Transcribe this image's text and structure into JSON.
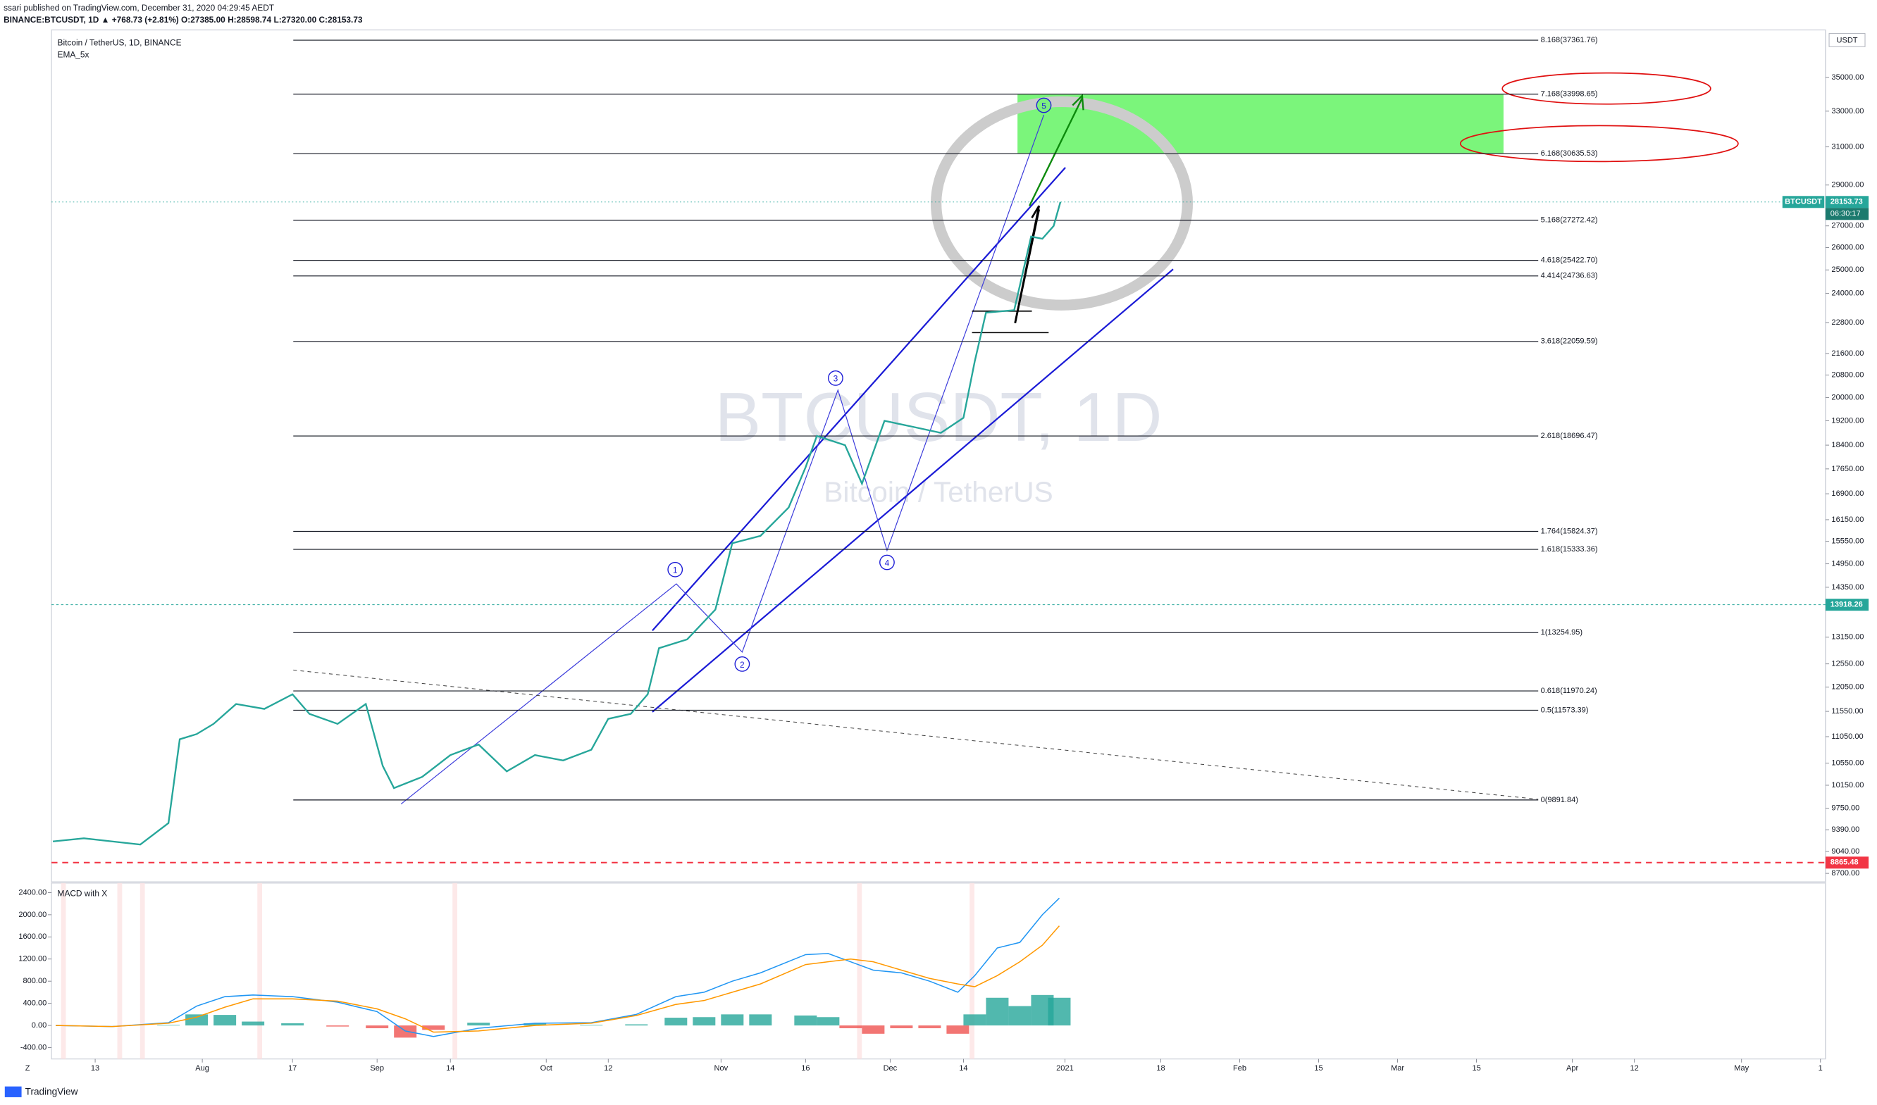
{
  "header": {
    "publisher": "ssari published on TradingView.com, December 31, 2020 04:29:45 AEDT",
    "symbol_line": "BINANCE:BTCUSDT, 1D ▲ +768.73 (+2.81%) O:27385.00 H:28598.74 L:27320.00 C:28153.73",
    "brand": "TradingView"
  },
  "chart_data": [
    {
      "type": "line",
      "title": "Bitcoin / TetherUS, 1D, BINANCE",
      "indicator": "EMA_5x",
      "watermark": "BTCUSDT, 1D",
      "watermark_subtitle": "Bitcoin / TetherUS",
      "unit": "USDT",
      "log_scale": true,
      "grid": false,
      "xlim": [
        4.25,
        318.9
      ],
      "xticks": [
        {
          "value": 12,
          "label": "13"
        },
        {
          "value": 31,
          "label": "Aug"
        },
        {
          "value": 47,
          "label": "17"
        },
        {
          "value": 62,
          "label": "Sep"
        },
        {
          "value": 75,
          "label": "14"
        },
        {
          "value": 92,
          "label": "Oct"
        },
        {
          "value": 103,
          "label": "12"
        },
        {
          "value": 123,
          "label": "Nov"
        },
        {
          "value": 138,
          "label": "16"
        },
        {
          "value": 153,
          "label": "Dec"
        },
        {
          "value": 166,
          "label": "14"
        },
        {
          "value": 184,
          "label": "2021"
        },
        {
          "value": 201,
          "label": "18"
        },
        {
          "value": 215,
          "label": "Feb"
        },
        {
          "value": 229,
          "label": "15"
        },
        {
          "value": 243,
          "label": "Mar"
        },
        {
          "value": 257,
          "label": "15"
        },
        {
          "value": 274,
          "label": "Apr"
        },
        {
          "value": 285,
          "label": "12"
        },
        {
          "value": 304,
          "label": "May"
        },
        {
          "value": 318,
          "label": "1"
        }
      ],
      "ylim": [
        8572,
        38040
      ],
      "yticks": [
        {
          "value": 35000,
          "label": "35000.00"
        },
        {
          "value": 33000,
          "label": "33000.00"
        },
        {
          "value": 31000,
          "label": "31000.00"
        },
        {
          "value": 29000,
          "label": "29000.00"
        },
        {
          "value": 27000,
          "label": "27000.00"
        },
        {
          "value": 26000,
          "label": "26000.00"
        },
        {
          "value": 25000,
          "label": "25000.00"
        },
        {
          "value": 24000,
          "label": "24000.00"
        },
        {
          "value": 22800,
          "label": "22800.00"
        },
        {
          "value": 21600,
          "label": "21600.00"
        },
        {
          "value": 20800,
          "label": "20800.00"
        },
        {
          "value": 20000,
          "label": "20000.00"
        },
        {
          "value": 19200,
          "label": "19200.00"
        },
        {
          "value": 18400,
          "label": "18400.00"
        },
        {
          "value": 17650,
          "label": "17650.00"
        },
        {
          "value": 16900,
          "label": "16900.00"
        },
        {
          "value": 16150,
          "label": "16150.00"
        },
        {
          "value": 15550,
          "label": "15550.00"
        },
        {
          "value": 14950,
          "label": "14950.00"
        },
        {
          "value": 14350,
          "label": "14350.00"
        },
        {
          "value": 13150,
          "label": "13150.00"
        },
        {
          "value": 12550,
          "label": "12550.00"
        },
        {
          "value": 12050,
          "label": "12050.00"
        },
        {
          "value": 11550,
          "label": "11550.00"
        },
        {
          "value": 11050,
          "label": "11050.00"
        },
        {
          "value": 10550,
          "label": "10550.00"
        },
        {
          "value": 10150,
          "label": "10150.00"
        },
        {
          "value": 9750,
          "label": "9750.00"
        },
        {
          "value": 9390,
          "label": "9390.00"
        },
        {
          "value": 9040,
          "label": "9040.00"
        },
        {
          "value": 8700,
          "label": "8700.00"
        }
      ],
      "x": [
        4.5,
        10,
        15,
        20,
        25,
        27,
        30,
        33,
        37,
        42,
        47,
        50,
        55,
        60,
        63,
        65,
        70,
        75,
        80,
        85,
        90,
        95,
        100,
        103,
        107,
        110,
        112,
        117,
        122,
        125,
        130,
        135,
        138,
        140,
        145,
        148,
        152,
        157,
        162,
        166,
        168,
        170,
        175,
        178,
        180,
        182,
        183.2
      ],
      "series": [
        {
          "name": "BTCUSDT",
          "color": "#26a69a",
          "values": [
            9200,
            9250,
            9200,
            9150,
            9500,
            11000,
            11100,
            11300,
            11700,
            11600,
            11900,
            11500,
            11300,
            11700,
            10500,
            10100,
            10300,
            10700,
            10900,
            10400,
            10700,
            10600,
            10800,
            11400,
            11500,
            11900,
            12900,
            13100,
            13800,
            15500,
            15700,
            16500,
            17700,
            18700,
            18400,
            17200,
            19200,
            19000,
            18800,
            19300,
            21300,
            23200,
            23300,
            26500,
            26400,
            27000,
            28153.73
          ]
        }
      ],
      "last_price": 28153.73,
      "countdown": "06:30:17",
      "levels": [
        {
          "value": 13918.26,
          "color": "#26a69a"
        },
        {
          "value": 8865.48,
          "color": "#f23645"
        }
      ],
      "fib_levels": [
        {
          "value": 37361.76,
          "label": "8.168(37361.76)"
        },
        {
          "value": 33998.65,
          "label": "7.168(33998.65)"
        },
        {
          "value": 30635.53,
          "label": "6.168(30635.53)"
        },
        {
          "value": 27272.42,
          "label": "5.168(27272.42)"
        },
        {
          "value": 25422.7,
          "label": "4.618(25422.70)"
        },
        {
          "value": 24736.63,
          "label": "4.414(24736.63)"
        },
        {
          "value": 22059.59,
          "label": "3.618(22059.59)"
        },
        {
          "value": 18696.47,
          "label": "2.618(18696.47)"
        },
        {
          "value": 15824.37,
          "label": "1.764(15824.37)"
        },
        {
          "value": 15333.36,
          "label": "1.618(15333.36)"
        },
        {
          "value": 13254.95,
          "label": "1(13254.95)"
        },
        {
          "value": 11970.24,
          "label": "0.618(11970.24)"
        },
        {
          "value": 11573.39,
          "label": "0.5(11573.39)"
        },
        {
          "value": 9891.84,
          "label": "0(9891.84)"
        }
      ],
      "wave_labels": [
        "1",
        "2",
        "3",
        "4",
        "5"
      ]
    },
    {
      "type": "line",
      "title": "MACD with X",
      "grid": false,
      "ylim": [
        -605,
        2573
      ],
      "yticks": [
        {
          "value": 2400,
          "label": "2400.00"
        },
        {
          "value": 2000,
          "label": "2000.00"
        },
        {
          "value": 1600,
          "label": "1600.00"
        },
        {
          "value": 1200,
          "label": "1200.00"
        },
        {
          "value": 800,
          "label": "800.00"
        },
        {
          "value": 400,
          "label": "400.00"
        },
        {
          "value": 0,
          "label": "0.00"
        },
        {
          "value": -400,
          "label": "-400.00"
        }
      ],
      "x": [
        5,
        15,
        25,
        30,
        35,
        40,
        47,
        55,
        62,
        67,
        72,
        80,
        90,
        100,
        108,
        115,
        120,
        125,
        130,
        138,
        142,
        146,
        150,
        155,
        160,
        165,
        168,
        172,
        176,
        180,
        183
      ],
      "series": [
        {
          "color": "#2196f3",
          "values": [
            0,
            -20,
            50,
            350,
            520,
            550,
            520,
            420,
            250,
            -100,
            -200,
            -50,
            40,
            50,
            200,
            520,
            600,
            800,
            950,
            1280,
            1300,
            1150,
            1000,
            950,
            800,
            600,
            900,
            1400,
            1500,
            2000,
            2300
          ]
        },
        {
          "color": "#ff9800",
          "values": [
            0,
            -20,
            40,
            150,
            330,
            480,
            480,
            440,
            300,
            120,
            -120,
            -100,
            0,
            40,
            180,
            380,
            450,
            600,
            750,
            1100,
            1150,
            1200,
            1150,
            1000,
            850,
            750,
            700,
            900,
            1150,
            1450,
            1800
          ]
        }
      ],
      "histogram": {
        "up_color": "#26a69a",
        "down_color": "#ef5350",
        "values": [
          0,
          0,
          10,
          200,
          190,
          70,
          40,
          -20,
          -50,
          -220,
          -80,
          50,
          40,
          10,
          20,
          140,
          150,
          200,
          200,
          180,
          150,
          -50,
          -150,
          -50,
          -50,
          -150,
          200,
          500,
          350,
          550,
          500
        ]
      }
    }
  ]
}
